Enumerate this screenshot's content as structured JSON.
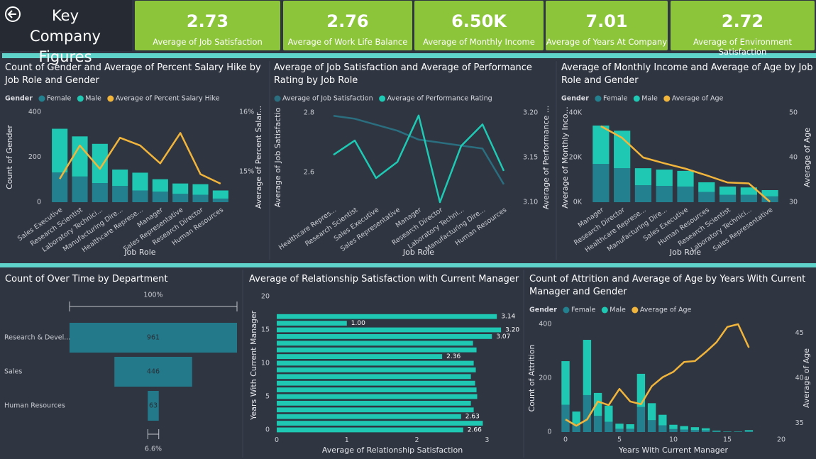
{
  "header": {
    "title": "Key Company Figures"
  },
  "kpis": [
    {
      "value": 2.73,
      "caption": "Average of Job Satisfaction"
    },
    {
      "value": 2.76,
      "caption": "Average of Work Life Balance"
    },
    {
      "value": 6500,
      "value_label": "6.50K",
      "caption": "Average of Monthly Income"
    },
    {
      "value": 7.01,
      "caption": "Average of Years At Company"
    },
    {
      "value": 2.72,
      "caption": "Average of Environment Satisfaction"
    }
  ],
  "chart_data": [
    {
      "type": "combo",
      "title": "Count of Gender and Average of Percent Salary Hike by Job Role and Gender",
      "legend_title": "Gender",
      "categories": [
        "Sales Executive",
        "Research Scientist",
        "Laboratory Technici...",
        "Manufacturing Dire...",
        "Healthcare Represe...",
        "Manager",
        "Sales Representative",
        "Research Director",
        "Human Resources"
      ],
      "x_label": "Job Role",
      "y_label": "Count of Gender",
      "y2_label": "Average of Percent Salar...",
      "ylim": [
        0,
        400
      ],
      "yticks": [
        0,
        200,
        400
      ],
      "y2lim": [
        14.49,
        16
      ],
      "y2ticks": [
        {
          "value": 15,
          "label": "15%"
        },
        {
          "value": 16,
          "label": "16%"
        }
      ],
      "series": [
        {
          "name": "Female",
          "color": "#23818f",
          "kind": "bar",
          "values": [
            132,
            114,
            85,
            72,
            52,
            47,
            37,
            33,
            16
          ]
        },
        {
          "name": "Male",
          "color": "#1fc8b3",
          "kind": "bar",
          "values": [
            194,
            178,
            174,
            73,
            79,
            55,
            46,
            47,
            36
          ]
        },
        {
          "name": "Average of Percent Salary Hike",
          "color": "#f2b53c",
          "kind": "line",
          "axis": "y2",
          "values": [
            14.88,
            15.44,
            15.05,
            15.57,
            15.44,
            15.14,
            15.65,
            14.96,
            14.8
          ]
        }
      ]
    },
    {
      "type": "line",
      "title": "Average of Job Satisfaction and Average of Performance Rating by Job Role",
      "categories": [
        "Healthcare Repres...",
        "Research Scientist",
        "Sales Executive",
        "Sales Representative",
        "Manager",
        "Research Director",
        "Laboratory Techni...",
        "Manufacturing Dire...",
        "Human Resources"
      ],
      "x_label": "Job Role",
      "y_label": "Average of Job Satisfactio",
      "y2_label": "Average of Performance ...",
      "ylim": [
        2.5,
        2.8
      ],
      "yticks": [
        2.6,
        2.8
      ],
      "y2lim": [
        3.1,
        3.2
      ],
      "y2ticks": [
        {
          "value": 3.1,
          "label": "3.10"
        },
        3.15,
        {
          "value": 3.2,
          "label": "3.20"
        }
      ],
      "series": [
        {
          "name": "Average of Job Satisfaction",
          "color": "#2a6e7f",
          "kind": "line",
          "values": [
            2.79,
            2.78,
            2.76,
            2.74,
            2.71,
            2.7,
            2.69,
            2.68,
            2.56
          ]
        },
        {
          "name": "Average of Performance Rating",
          "color": "#1fcab5",
          "kind": "line",
          "axis": "y2",
          "values": [
            3.153,
            3.169,
            3.127,
            3.145,
            3.197,
            3.1,
            3.163,
            3.187,
            3.135
          ]
        }
      ]
    },
    {
      "type": "combo",
      "title": "Average of Monthly Income and Average of Age by Job Role and Gender",
      "legend_title": "Gender",
      "categories": [
        "Manager",
        "Research Director",
        "Healthcare Represe...",
        "Manufacturing Dire...",
        "Sales Executive",
        "Human Resources",
        "Research Scientist",
        "Laboratory Technici...",
        "Sales Representative"
      ],
      "x_label": "Job Role",
      "y_label": "Average of Monthly Inco...",
      "y2_label": "Average of Age",
      "ylim": [
        0,
        40000
      ],
      "yticks": [
        {
          "value": 0,
          "label": "0K"
        },
        {
          "value": 20000,
          "label": "20K"
        },
        {
          "value": 40000,
          "label": "40K"
        }
      ],
      "y2lim": [
        30,
        50
      ],
      "y2ticks": [
        30,
        40,
        50
      ],
      "series": [
        {
          "name": "Female",
          "color": "#23818f",
          "kind": "bar",
          "values": [
            17100,
            15200,
            7600,
            7300,
            7000,
            4600,
            3300,
            3300,
            2600
          ]
        },
        {
          "name": "Male",
          "color": "#1fc8b3",
          "kind": "bar",
          "values": [
            17200,
            16800,
            7600,
            7300,
            7000,
            4300,
            3700,
            3300,
            2800
          ]
        },
        {
          "name": "Average of Age",
          "color": "#f2b53c",
          "kind": "line",
          "axis": "y2",
          "values": [
            47,
            44.4,
            40,
            38.7,
            37.5,
            36,
            34.4,
            34.2,
            30.1
          ]
        }
      ]
    },
    {
      "type": "funnel",
      "title": "Count of Over Time by Department",
      "categories": [
        "Research & Devel...",
        "Sales",
        "Human Resources"
      ],
      "values": [
        961,
        446,
        63
      ],
      "color": "#23798a",
      "percents": [
        100,
        6.6
      ],
      "percent_labels": [
        "100%",
        "6.6%"
      ]
    },
    {
      "type": "hbar",
      "title": "Average of Relationship Satisfaction with Current Manager",
      "x_label": "Average of Relationship Satisfaction",
      "y_label": "Years With Current Manager",
      "y": [
        0,
        1,
        2,
        3,
        4,
        5,
        6,
        7,
        8,
        9,
        10,
        11,
        12,
        13,
        14,
        15,
        16,
        17
      ],
      "values": [
        2.66,
        2.94,
        2.63,
        2.81,
        2.77,
        2.86,
        2.85,
        2.83,
        2.77,
        2.84,
        2.81,
        2.36,
        2.85,
        2.8,
        3.07,
        3.2,
        1.0,
        3.14
      ],
      "value_labels": [
        "2.66",
        null,
        "2.63",
        null,
        null,
        null,
        null,
        null,
        null,
        null,
        null,
        "2.36",
        null,
        null,
        "3.07",
        "3.20",
        "1.00",
        "3.14"
      ],
      "color": "#1fc8b3",
      "xlim": [
        0,
        3.3
      ],
      "xticks": [
        0,
        1,
        2,
        3
      ],
      "ylim": [
        -0.6,
        20
      ],
      "yticks": [
        0,
        5,
        10,
        15,
        20
      ]
    },
    {
      "type": "combo",
      "title": "Count of Attrition and Average of Age by Years With Current Manager and Gender",
      "legend_title": "Gender",
      "x": [
        0,
        1,
        2,
        3,
        4,
        5,
        6,
        7,
        8,
        9,
        10,
        11,
        12,
        13,
        14,
        15,
        16,
        17
      ],
      "x_label": "Years With Current Manager",
      "y_label": "Count of Attrition",
      "y2_label": "Average of Age",
      "xlim": [
        -0.5,
        20.5
      ],
      "xticks": [
        0,
        5,
        10,
        15,
        20
      ],
      "ylim": [
        0,
        400
      ],
      "yticks": [
        0,
        200,
        400
      ],
      "y2lim": [
        34,
        46
      ],
      "y2ticks": [
        35,
        40,
        45
      ],
      "series": [
        {
          "name": "Female",
          "color": "#23818f",
          "kind": "bar",
          "values": [
            101,
            30,
            137,
            60,
            38,
            12,
            12,
            93,
            44,
            25,
            11,
            9,
            7,
            6,
            2,
            1,
            1,
            3
          ]
        },
        {
          "name": "Male",
          "color": "#1fc8b3",
          "kind": "bar",
          "values": [
            162,
            46,
            205,
            85,
            60,
            19,
            17,
            123,
            63,
            39,
            16,
            13,
            11,
            8,
            3,
            1,
            1,
            4
          ]
        },
        {
          "name": "Average of Age",
          "color": "#f2b53c",
          "kind": "line",
          "axis": "y2",
          "values": [
            35.4,
            34.7,
            35.4,
            37.4,
            37.0,
            38.8,
            37.4,
            37.1,
            39.1,
            40.1,
            40.7,
            41.8,
            41.9,
            42.9,
            44.0,
            45.7,
            46.0,
            43.4
          ]
        }
      ]
    }
  ]
}
